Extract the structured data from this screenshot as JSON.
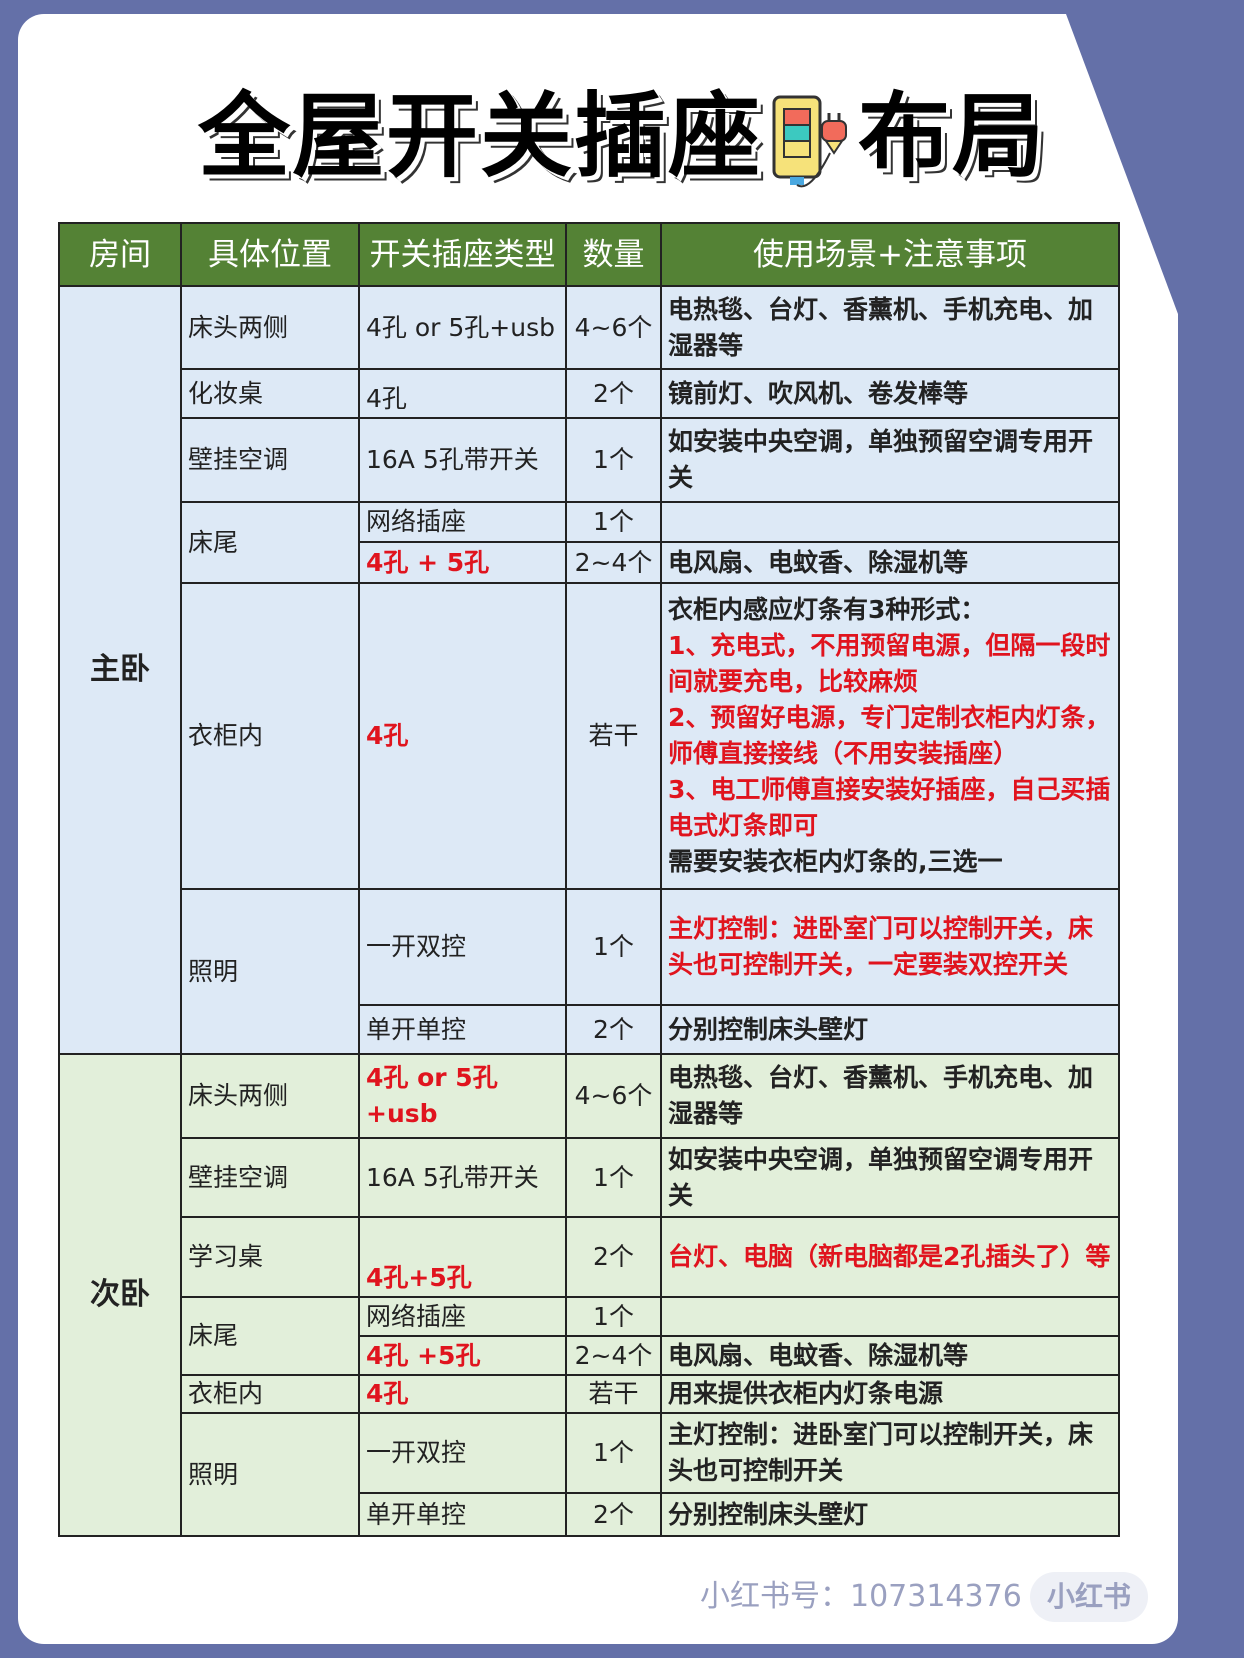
{
  "title_left": "全屋开关插座",
  "title_right": "布局",
  "title_icon": "socket-plug-icon",
  "colors": {
    "header": "#548235",
    "master_bg": "#dde9f6",
    "second_bg": "#e2efda",
    "red": "#e0141e",
    "page_bg": "#6470a8"
  },
  "headers": [
    "房间",
    "具体位置",
    "开关插座类型",
    "数量",
    "使用场景+注意事项"
  ],
  "master": {
    "room": "主卧",
    "rows": [
      {
        "pos": "床头两侧",
        "type": "4孔 or 5孔+usb",
        "qty": "4~6个",
        "note": "电热毯、台灯、香薰机、手机充电、加湿器等"
      },
      {
        "pos": "化妆桌",
        "type": "4孔",
        "qty": "2个",
        "note": "镜前灯、吹风机、卷发棒等"
      },
      {
        "pos": "壁挂空调",
        "type": "16A 5孔带开关",
        "qty": "1个",
        "note": "如安装中央空调，单独预留空调专用开关"
      },
      {
        "pos": "床尾",
        "type": "网络插座",
        "qty": "1个",
        "note": ""
      },
      {
        "type": "4孔 + 5孔",
        "qty": "2~4个",
        "note": "电风扇、电蚊香、除湿机等"
      },
      {
        "pos": "衣柜内",
        "type": "4孔",
        "qty": "若干",
        "note_lines": [
          "衣柜内感应灯条有3种形式：",
          "1、充电式，不用预留电源，但隔一段时间就要充电，比较麻烦",
          "2、预留好电源，专门定制衣柜内灯条，师傅直接接线（不用安装插座）",
          "3、电工师傅直接安装好插座，自己买插电式灯条即可",
          "需要安装衣柜内灯条的,三选一"
        ]
      },
      {
        "pos": "照明",
        "type": "一开双控",
        "qty": "1个",
        "note": "主灯控制：进卧室门可以控制开关，床头也可控制开关，一定要装双控开关"
      },
      {
        "type": "单开单控",
        "qty": "2个",
        "note": "分别控制床头壁灯"
      }
    ]
  },
  "second": {
    "room": "次卧",
    "rows": [
      {
        "pos": "床头两侧",
        "type": "4孔 or 5孔+usb",
        "qty": "4~6个",
        "note": "电热毯、台灯、香薰机、手机充电、加湿器等"
      },
      {
        "pos": "壁挂空调",
        "type": "16A 5孔带开关",
        "qty": "1个",
        "note": "如安装中央空调，单独预留空调专用开关"
      },
      {
        "pos": "学习桌",
        "type": "4孔+5孔",
        "qty": "2个",
        "note": "台灯、电脑（新电脑都是2孔插头了）等"
      },
      {
        "pos": "床尾",
        "type": "网络插座",
        "qty": "1个",
        "note": ""
      },
      {
        "type": "4孔 +5孔",
        "qty": "2~4个",
        "note": "电风扇、电蚊香、除湿机等"
      },
      {
        "pos": "衣柜内",
        "type": "4孔",
        "qty": "若干",
        "note": "用来提供衣柜内灯条电源"
      },
      {
        "pos": "照明",
        "type": "一开双控",
        "qty": "1个",
        "note": "主灯控制：进卧室门可以控制开关，床头也可控制开关"
      },
      {
        "type": "单开单控",
        "qty": "2个",
        "note": "分别控制床头壁灯"
      }
    ]
  },
  "watermark": {
    "logo": "小红书",
    "id": "小红书号：107314376"
  }
}
